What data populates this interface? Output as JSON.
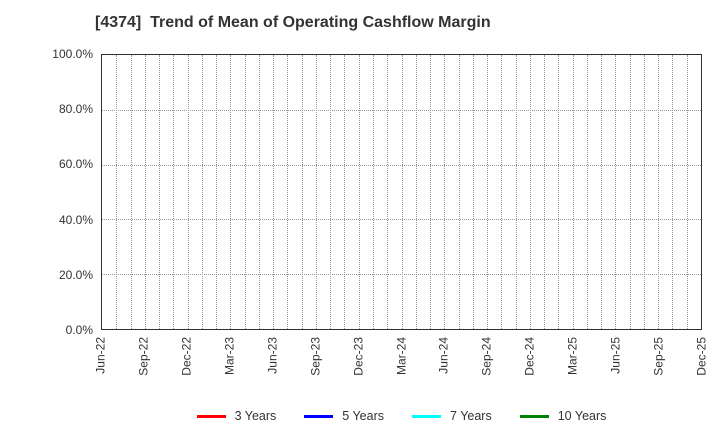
{
  "figure": {
    "background_color": "#ffffff",
    "border_color": "#333333",
    "grid_color": "#999999",
    "text_color": "#333333"
  },
  "chart_data": {
    "type": "line",
    "title": "[4374]  Trend of Mean of Operating Cashflow Margin",
    "xlabel": "",
    "ylabel": "",
    "ylim": [
      0,
      100
    ],
    "y_tick_labels_top_to_bottom": [
      "100.0%",
      "80.0%",
      "60.0%",
      "40.0%",
      "20.0%",
      "0.0%"
    ],
    "x_tick_labels": [
      "Jun-22",
      "Sep-22",
      "Dec-22",
      "Mar-23",
      "Jun-23",
      "Sep-23",
      "Dec-23",
      "Mar-24",
      "Jun-24",
      "Sep-24",
      "Dec-24",
      "Mar-25",
      "Jun-25",
      "Sep-25",
      "Dec-25"
    ],
    "x_minor_divisions_per_interval": 3,
    "grid": "dotted",
    "legend_position": "bottom",
    "series": [
      {
        "name": "3 Years",
        "color": "#ff0000",
        "values": []
      },
      {
        "name": "5 Years",
        "color": "#0000ff",
        "values": []
      },
      {
        "name": "7 Years",
        "color": "#00ffff",
        "values": []
      },
      {
        "name": "10 Years",
        "color": "#008000",
        "values": []
      }
    ]
  }
}
